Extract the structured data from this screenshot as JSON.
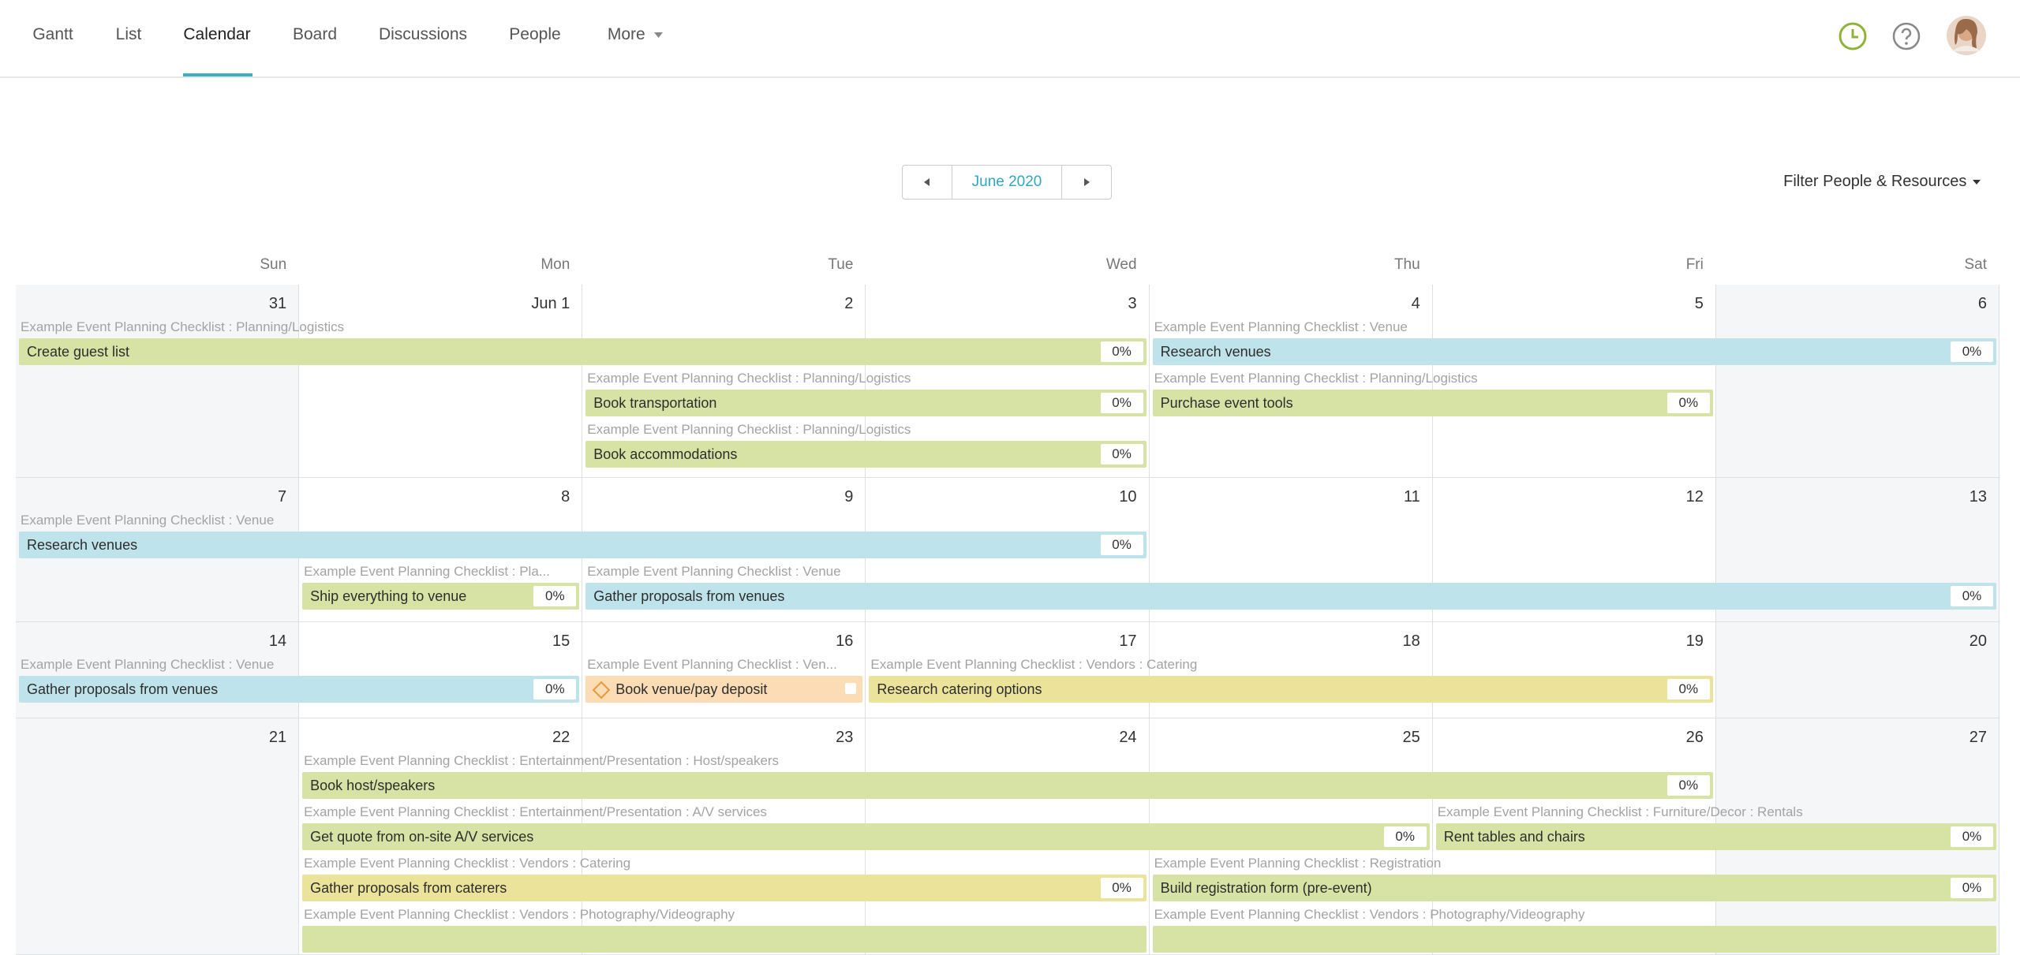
{
  "nav": {
    "tabs": [
      "Gantt",
      "List",
      "Calendar",
      "Board",
      "Discussions",
      "People",
      "More"
    ],
    "active": 2
  },
  "calendar": {
    "month": "June 2020",
    "filter": "Filter People & Resources",
    "weekdays": [
      "Sun",
      "Mon",
      "Tue",
      "Wed",
      "Thu",
      "Fri",
      "Sat"
    ],
    "weeks": [
      {
        "days": [
          "31",
          "Jun 1",
          "2",
          "3",
          "4",
          "5",
          "6"
        ],
        "events": [
          {
            "project": "Example Event Planning Checklist : Planning/Logistics",
            "name": "Create guest list",
            "progress": "0%",
            "start": 0,
            "span": 4,
            "color": "#d6e3a5"
          },
          {
            "project": "Example Event Planning Checklist : Venue",
            "name": "Research venues",
            "progress": "0%",
            "start": 4,
            "span": 3,
            "color": "#bfe3ea"
          },
          {
            "project": "Example Event Planning Checklist : Planning/Logistics",
            "name": "Book transportation",
            "progress": "0%",
            "start": 2,
            "span": 2,
            "color": "#d6e3a5"
          },
          {
            "project": "Example Event Planning Checklist : Planning/Logistics",
            "name": "Purchase event tools",
            "progress": "0%",
            "start": 4,
            "span": 2,
            "color": "#d6e3a5"
          },
          {
            "project": "Example Event Planning Checklist : Planning/Logistics",
            "name": "Book accommodations",
            "progress": "0%",
            "start": 2,
            "span": 2,
            "color": "#d6e3a5"
          }
        ]
      },
      {
        "days": [
          "7",
          "8",
          "9",
          "10",
          "11",
          "12",
          "13"
        ],
        "events": [
          {
            "project": "Example Event Planning Checklist : Venue",
            "name": "Research venues",
            "progress": "0%",
            "start": 0,
            "span": 4,
            "color": "#bfe3ea"
          },
          {
            "project": "Example Event Planning Checklist : Pla...",
            "name": "Ship everything to venue",
            "progress": "0%",
            "start": 1,
            "span": 1,
            "color": "#d6e3a5"
          },
          {
            "project": "Example Event Planning Checklist : Venue",
            "name": "Gather proposals from venues",
            "progress": "0%",
            "start": 2,
            "span": 5,
            "color": "#bfe3ea"
          }
        ]
      },
      {
        "days": [
          "14",
          "15",
          "16",
          "17",
          "18",
          "19",
          "20"
        ],
        "events": [
          {
            "project": "Example Event Planning Checklist : Venue",
            "name": "Gather proposals from venues",
            "progress": "0%",
            "start": 0,
            "span": 2,
            "color": "#bfe3ea"
          },
          {
            "project": "Example Event Planning Checklist : Ven...",
            "name": "Book venue/pay deposit",
            "milestone": true,
            "start": 2,
            "span": 1,
            "color": "#fbdcb5"
          },
          {
            "project": "Example Event Planning Checklist : Vendors : Catering",
            "name": "Research catering options",
            "progress": "0%",
            "start": 3,
            "span": 3,
            "color": "#ece39b"
          }
        ]
      },
      {
        "days": [
          "21",
          "22",
          "23",
          "24",
          "25",
          "26",
          "27"
        ],
        "events": [
          {
            "project": "Example Event Planning Checklist : Entertainment/Presentation : Host/speakers",
            "name": "Book host/speakers",
            "progress": "0%",
            "start": 1,
            "span": 5,
            "color": "#d6e3a5"
          },
          {
            "project": "Example Event Planning Checklist : Entertainment/Presentation : A/V services",
            "name": "Get quote from on-site A/V services",
            "progress": "0%",
            "start": 1,
            "span": 4,
            "color": "#d6e3a5"
          },
          {
            "project": "Example Event Planning Checklist : Furniture/Decor : Rentals",
            "name": "Rent tables and chairs",
            "progress": "0%",
            "start": 5,
            "span": 2,
            "color": "#d6e3a5"
          },
          {
            "project": "Example Event Planning Checklist : Vendors : Catering",
            "name": "Gather proposals from caterers",
            "progress": "0%",
            "start": 1,
            "span": 3,
            "color": "#ece39b"
          },
          {
            "project": "Example Event Planning Checklist : Registration",
            "name": "Build registration form (pre-event)",
            "progress": "0%",
            "start": 4,
            "span": 3,
            "color": "#d6e3a5"
          },
          {
            "project": "Example Event Planning Checklist : Vendors : Photography/Videography",
            "start": 1,
            "span": 3,
            "color": "#d6e3a5"
          },
          {
            "project": "Example Event Planning Checklist : Vendors : Photography/Videography",
            "start": 4,
            "span": 3,
            "color": "#d6e3a5"
          }
        ]
      }
    ]
  }
}
